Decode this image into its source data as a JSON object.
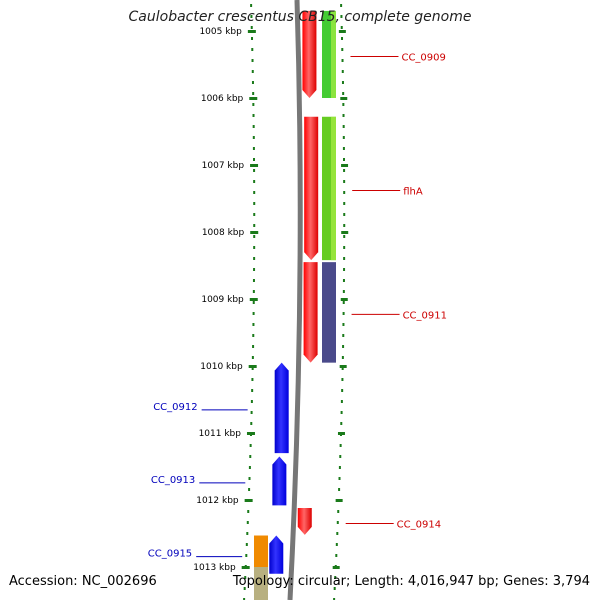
{
  "title": "Caulobacter crescentus CB15, complete genome",
  "footer": {
    "accession": "Accession: NC_002696",
    "summary": "Topology: circular; Length: 4,016,947 bp; Genes: 3,794"
  },
  "colors": {
    "forward_label": "#cc0000",
    "reverse_label": "#0000bb",
    "backbone": "#808080",
    "tick": "#1a7a1a"
  },
  "axis": {
    "unit": "kbp",
    "ticks": [
      {
        "kbp": 1005,
        "label": "1005 kbp"
      },
      {
        "kbp": 1006,
        "label": "1006 kbp"
      },
      {
        "kbp": 1007,
        "label": "1007 kbp"
      },
      {
        "kbp": 1008,
        "label": "1008 kbp"
      },
      {
        "kbp": 1009,
        "label": "1009 kbp"
      },
      {
        "kbp": 1010,
        "label": "1010 kbp"
      },
      {
        "kbp": 1011,
        "label": "1011 kbp"
      },
      {
        "kbp": 1012,
        "label": "1012 kbp"
      },
      {
        "kbp": 1013,
        "label": "1013 kbp"
      }
    ]
  },
  "genes": [
    {
      "label": "CC_0909",
      "strand": "+",
      "start_kbp": 1004.7,
      "end_kbp": 1006.0,
      "color": "#ff0000"
    },
    {
      "label": "flhA",
      "strand": "+",
      "start_kbp": 1006.28,
      "end_kbp": 1008.42,
      "color": "#ff0000"
    },
    {
      "label": "CC_0911",
      "strand": "+",
      "start_kbp": 1008.45,
      "end_kbp": 1009.95,
      "color": "#ff0000"
    },
    {
      "label": "CC_0914",
      "strand": "+",
      "start_kbp": 1012.12,
      "end_kbp": 1012.52,
      "color": "#ff0000"
    },
    {
      "label": "CC_0912",
      "strand": "-",
      "start_kbp": 1009.95,
      "end_kbp": 1011.3,
      "color": "#0000ee"
    },
    {
      "label": "CC_0913",
      "strand": "-",
      "start_kbp": 1011.35,
      "end_kbp": 1012.08,
      "color": "#0000ee"
    },
    {
      "label": "CC_0915",
      "strand": "-",
      "start_kbp": 1012.53,
      "end_kbp": 1013.1,
      "color": "#0000ee"
    }
  ],
  "features": [
    {
      "name": "feature-green-1",
      "start_kbp": 1004.7,
      "end_kbp": 1006.0,
      "color": "#44cc33"
    },
    {
      "name": "feature-green-2",
      "start_kbp": 1006.28,
      "end_kbp": 1008.42,
      "color": "#66cc22"
    },
    {
      "name": "feature-purple",
      "start_kbp": 1008.45,
      "end_kbp": 1009.95,
      "color": "#4a4a8a"
    },
    {
      "name": "feature-orange",
      "start_kbp": 1012.53,
      "end_kbp": 1013.0,
      "color": "#f08a00"
    },
    {
      "name": "feature-olive",
      "start_kbp": 1013.0,
      "end_kbp": 1013.5,
      "color": "#b8b080"
    }
  ]
}
